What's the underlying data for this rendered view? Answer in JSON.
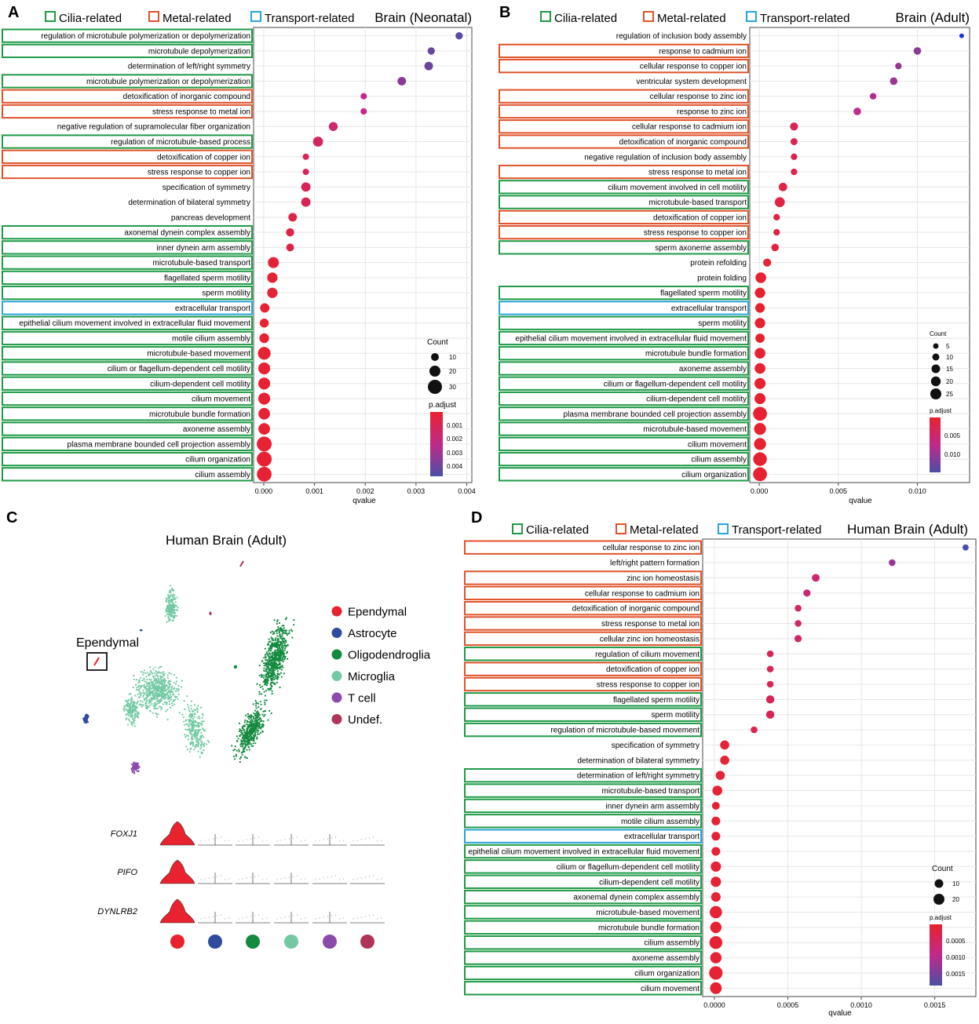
{
  "colors": {
    "cilia": "#1e9a46",
    "metal": "#e0522a",
    "transport": "#27a4d8",
    "grid": "#e6e6e6",
    "red": "#e8222f",
    "purple": "#a042b5",
    "blue": "#3a4ca3",
    "bright_blue": "#1f2ee8"
  },
  "header_legend": {
    "cilia": "Cilia-related",
    "metal": "Metal-related",
    "transport": "Transport-related"
  },
  "chart_data": [
    {
      "panel": "A",
      "type": "scatter",
      "title": "Brain (Neonatal)",
      "xlabel": "qvalue",
      "xlim": [
        -0.0002,
        0.0041
      ],
      "xticks": [
        0,
        0.001,
        0.002,
        0.003,
        0.004
      ],
      "xtick_labels": [
        "0.000",
        "0.001",
        "0.002",
        "0.003",
        "0.004"
      ],
      "size_legend": {
        "title": "Count",
        "values": [
          10,
          20,
          30
        ]
      },
      "color_legend": {
        "title": "p.adjust",
        "labels": [
          "0.001",
          "0.002",
          "0.003",
          "0.004"
        ]
      },
      "terms": [
        {
          "label": "regulation of microtubule polymerization or depolymerization",
          "group": "cilia",
          "qvalue": 0.00385,
          "count": 8,
          "padj": 0.0045
        },
        {
          "label": "microtubule depolymerization",
          "group": "cilia",
          "qvalue": 0.0033,
          "count": 8,
          "padj": 0.0042
        },
        {
          "label": "determination of left/right symmetry",
          "group": "none",
          "qvalue": 0.00325,
          "count": 11,
          "padj": 0.0041
        },
        {
          "label": "microtubule polymerization or depolymerization",
          "group": "cilia",
          "qvalue": 0.00272,
          "count": 11,
          "padj": 0.0035
        },
        {
          "label": "detoxification of inorganic compound",
          "group": "metal",
          "qvalue": 0.00197,
          "count": 6,
          "padj": 0.0024
        },
        {
          "label": "stress response to metal ion",
          "group": "metal",
          "qvalue": 0.00197,
          "count": 6,
          "padj": 0.0024
        },
        {
          "label": "negative regulation of supramolecular fiber organization",
          "group": "none",
          "qvalue": 0.00137,
          "count": 12,
          "padj": 0.0017
        },
        {
          "label": "regulation of microtubule-based process",
          "group": "cilia",
          "qvalue": 0.00107,
          "count": 15,
          "padj": 0.0013
        },
        {
          "label": "detoxification of copper ion",
          "group": "metal",
          "qvalue": 0.00083,
          "count": 6,
          "padj": 0.001
        },
        {
          "label": "stress response to copper ion",
          "group": "metal",
          "qvalue": 0.00083,
          "count": 6,
          "padj": 0.001
        },
        {
          "label": "specification of symmetry",
          "group": "none",
          "qvalue": 0.00083,
          "count": 13,
          "padj": 0.001
        },
        {
          "label": "determination of bilateral symmetry",
          "group": "none",
          "qvalue": 0.00083,
          "count": 13,
          "padj": 0.001
        },
        {
          "label": "pancreas development",
          "group": "none",
          "qvalue": 0.00057,
          "count": 11,
          "padj": 0.0007
        },
        {
          "label": "axonemal dynein complex assembly",
          "group": "cilia",
          "qvalue": 0.00052,
          "count": 10,
          "padj": 0.0006
        },
        {
          "label": "inner dynein arm assembly",
          "group": "cilia",
          "qvalue": 0.00052,
          "count": 9,
          "padj": 0.0006
        },
        {
          "label": "microtubule-based transport",
          "group": "cilia",
          "qvalue": 0.00019,
          "count": 18,
          "padj": 0.0003
        },
        {
          "label": "flagellated sperm motility",
          "group": "cilia",
          "qvalue": 0.00017,
          "count": 16,
          "padj": 0.0002
        },
        {
          "label": "sperm motility",
          "group": "cilia",
          "qvalue": 0.00017,
          "count": 16,
          "padj": 0.0002
        },
        {
          "label": "extracellular transport",
          "group": "transport",
          "qvalue": 2e-05,
          "count": 13,
          "padj": 0.0001
        },
        {
          "label": "epithelial cilium movement involved in extracellular fluid movement",
          "group": "cilia",
          "qvalue": 1e-05,
          "count": 12,
          "padj": 0.0001
        },
        {
          "label": "motile cilium assembly",
          "group": "cilia",
          "qvalue": 1e-05,
          "count": 14,
          "padj": 0.0001
        },
        {
          "label": "microtubule-based movement",
          "group": "cilia",
          "qvalue": 1e-05,
          "count": 24,
          "padj": 0.0001
        },
        {
          "label": "cilium or flagellum-dependent cell motility",
          "group": "cilia",
          "qvalue": 1e-05,
          "count": 21,
          "padj": 0.0001
        },
        {
          "label": "cilium-dependent cell motility",
          "group": "cilia",
          "qvalue": 1e-05,
          "count": 21,
          "padj": 0.0001
        },
        {
          "label": "cilium movement",
          "group": "cilia",
          "qvalue": 1e-05,
          "count": 21,
          "padj": 0.0001
        },
        {
          "label": "microtubule bundle formation",
          "group": "cilia",
          "qvalue": 1e-05,
          "count": 20,
          "padj": 0.0001
        },
        {
          "label": "axoneme assembly",
          "group": "cilia",
          "qvalue": 1e-05,
          "count": 20,
          "padj": 0.0001
        },
        {
          "label": "plasma membrane bounded cell projection assembly",
          "group": "cilia",
          "qvalue": 1e-05,
          "count": 33,
          "padj": 0.0001
        },
        {
          "label": "cilium organization",
          "group": "cilia",
          "qvalue": 1e-05,
          "count": 33,
          "padj": 0.0001
        },
        {
          "label": "cilium assembly",
          "group": "cilia",
          "qvalue": 1e-05,
          "count": 32,
          "padj": 0.0001
        }
      ]
    },
    {
      "panel": "B",
      "type": "scatter",
      "title": "Brain (Adult)",
      "xlabel": "qvalue",
      "xlim": [
        -0.0006,
        0.0133
      ],
      "xticks": [
        0,
        0.005,
        0.01
      ],
      "xtick_labels": [
        "0.000",
        "0.005",
        "0.010"
      ],
      "size_legend": {
        "title": "Count",
        "values": [
          5,
          10,
          15,
          20,
          25
        ]
      },
      "color_legend": {
        "title": "p.adjust",
        "labels": [
          "0.005",
          "0.010"
        ]
      },
      "terms": [
        {
          "label": "regulation of inclusion body assembly",
          "group": "none",
          "qvalue": 0.0128,
          "count": 3,
          "padj": 0.0125
        },
        {
          "label": "response to cadmium ion",
          "group": "metal",
          "qvalue": 0.01,
          "count": 8,
          "padj": 0.0095
        },
        {
          "label": "cellular response to copper ion",
          "group": "metal",
          "qvalue": 0.0088,
          "count": 6,
          "padj": 0.0088
        },
        {
          "label": "ventricular system development",
          "group": "none",
          "qvalue": 0.0085,
          "count": 8,
          "padj": 0.0085
        },
        {
          "label": "cellular response to zinc ion",
          "group": "metal",
          "qvalue": 0.0072,
          "count": 6,
          "padj": 0.0075
        },
        {
          "label": "response to zinc ion",
          "group": "metal",
          "qvalue": 0.0062,
          "count": 8,
          "padj": 0.0065
        },
        {
          "label": "cellular response to cadmium ion",
          "group": "metal",
          "qvalue": 0.0022,
          "count": 9,
          "padj": 0.0025
        },
        {
          "label": "detoxification of inorganic compound",
          "group": "metal",
          "qvalue": 0.0022,
          "count": 7,
          "padj": 0.0025
        },
        {
          "label": "negative regulation of inclusion body assembly",
          "group": "none",
          "qvalue": 0.0022,
          "count": 6,
          "padj": 0.0025
        },
        {
          "label": "stress response to metal ion",
          "group": "metal",
          "qvalue": 0.0022,
          "count": 6,
          "padj": 0.0025
        },
        {
          "label": "cilium movement involved in cell motility",
          "group": "cilia",
          "qvalue": 0.0015,
          "count": 10,
          "padj": 0.0017
        },
        {
          "label": "microtubule-based transport",
          "group": "cilia",
          "qvalue": 0.0013,
          "count": 14,
          "padj": 0.0015
        },
        {
          "label": "detoxification of copper ion",
          "group": "metal",
          "qvalue": 0.0011,
          "count": 6,
          "padj": 0.0012
        },
        {
          "label": "stress response to copper ion",
          "group": "metal",
          "qvalue": 0.0011,
          "count": 6,
          "padj": 0.0012
        },
        {
          "label": "sperm axoneme assembly",
          "group": "cilia",
          "qvalue": 0.001,
          "count": 8,
          "padj": 0.0011
        },
        {
          "label": "protein refolding",
          "group": "none",
          "qvalue": 0.0005,
          "count": 9,
          "padj": 0.0006
        },
        {
          "label": "protein folding",
          "group": "none",
          "qvalue": 0.0001,
          "count": 16,
          "padj": 0.0002
        },
        {
          "label": "flagellated sperm motility",
          "group": "cilia",
          "qvalue": 5e-05,
          "count": 15,
          "padj": 0.0001
        },
        {
          "label": "extracellular transport",
          "group": "transport",
          "qvalue": 5e-05,
          "count": 13,
          "padj": 0.0001
        },
        {
          "label": "sperm motility",
          "group": "cilia",
          "qvalue": 5e-05,
          "count": 15,
          "padj": 0.0001
        },
        {
          "label": "epithelial cilium movement involved in extracellular fluid movement",
          "group": "cilia",
          "qvalue": 5e-05,
          "count": 12,
          "padj": 0.0001
        },
        {
          "label": "microtubule bundle formation",
          "group": "cilia",
          "qvalue": 5e-05,
          "count": 16,
          "padj": 0.0001
        },
        {
          "label": "axoneme assembly",
          "group": "cilia",
          "qvalue": 5e-05,
          "count": 16,
          "padj": 0.0001
        },
        {
          "label": "cilium or flagellum-dependent cell motility",
          "group": "cilia",
          "qvalue": 5e-05,
          "count": 17,
          "padj": 0.0001
        },
        {
          "label": "cilium-dependent cell motility",
          "group": "cilia",
          "qvalue": 5e-05,
          "count": 17,
          "padj": 0.0001
        },
        {
          "label": "plasma membrane bounded cell projection assembly",
          "group": "cilia",
          "qvalue": 5e-05,
          "count": 27,
          "padj": 0.0001
        },
        {
          "label": "microtubule-based movement",
          "group": "cilia",
          "qvalue": 5e-05,
          "count": 20,
          "padj": 0.0001
        },
        {
          "label": "cilium movement",
          "group": "cilia",
          "qvalue": 5e-05,
          "count": 20,
          "padj": 0.0001
        },
        {
          "label": "cilium assembly",
          "group": "cilia",
          "qvalue": 5e-05,
          "count": 26,
          "padj": 0.0001
        },
        {
          "label": "cilium organization",
          "group": "cilia",
          "qvalue": 5e-05,
          "count": 27,
          "padj": 0.0001
        }
      ]
    },
    {
      "panel": "D",
      "type": "scatter",
      "title": "Human Brain (Adult)",
      "xlabel": "qvalue",
      "xlim": [
        -8e-05,
        0.00178
      ],
      "xticks": [
        0,
        0.0005,
        0.001,
        0.0015
      ],
      "xtick_labels": [
        "0.0000",
        "0.0005",
        "0.0010",
        "0.0015"
      ],
      "size_legend": {
        "title": "Count",
        "values": [
          10,
          20
        ]
      },
      "color_legend": {
        "title": "p.adjust",
        "labels": [
          "0.0005",
          "0.0010",
          "0.0015"
        ]
      },
      "terms": [
        {
          "label": "cellular response to zinc ion",
          "group": "metal",
          "qvalue": 0.00171,
          "count": 5,
          "padj": 0.0019
        },
        {
          "label": "left/right pattern formation",
          "group": "none",
          "qvalue": 0.00121,
          "count": 6,
          "padj": 0.0013
        },
        {
          "label": "zinc ion homeostasis",
          "group": "metal",
          "qvalue": 0.00069,
          "count": 8,
          "padj": 0.0007
        },
        {
          "label": "cellular response to cadmium ion",
          "group": "metal",
          "qvalue": 0.00063,
          "count": 7,
          "padj": 0.0007
        },
        {
          "label": "detoxification of inorganic compound",
          "group": "metal",
          "qvalue": 0.00057,
          "count": 6,
          "padj": 0.0006
        },
        {
          "label": "stress response to metal ion",
          "group": "metal",
          "qvalue": 0.00057,
          "count": 6,
          "padj": 0.0006
        },
        {
          "label": "cellular zinc ion homeostasis",
          "group": "metal",
          "qvalue": 0.00057,
          "count": 7,
          "padj": 0.0006
        },
        {
          "label": "regulation of cilium movement",
          "group": "cilia",
          "qvalue": 0.00038,
          "count": 6,
          "padj": 0.0004
        },
        {
          "label": "detoxification of copper ion",
          "group": "metal",
          "qvalue": 0.00038,
          "count": 6,
          "padj": 0.0004
        },
        {
          "label": "stress response to copper ion",
          "group": "metal",
          "qvalue": 0.00038,
          "count": 6,
          "padj": 0.0004
        },
        {
          "label": "flagellated sperm motility",
          "group": "cilia",
          "qvalue": 0.00038,
          "count": 9,
          "padj": 0.0004
        },
        {
          "label": "sperm motility",
          "group": "cilia",
          "qvalue": 0.00038,
          "count": 9,
          "padj": 0.0004
        },
        {
          "label": "regulation of microtubule-based movement",
          "group": "cilia",
          "qvalue": 0.00027,
          "count": 6,
          "padj": 0.0003
        },
        {
          "label": "specification of symmetry",
          "group": "none",
          "qvalue": 7e-05,
          "count": 11,
          "padj": 0.0001
        },
        {
          "label": "determination of bilateral symmetry",
          "group": "none",
          "qvalue": 7e-05,
          "count": 11,
          "padj": 0.0001
        },
        {
          "label": "determination of left/right symmetry",
          "group": "cilia",
          "qvalue": 4e-05,
          "count": 11,
          "padj": 0.0001
        },
        {
          "label": "microtubule-based transport",
          "group": "cilia",
          "qvalue": 2e-05,
          "count": 13,
          "padj": 5e-05
        },
        {
          "label": "inner dynein arm assembly",
          "group": "cilia",
          "qvalue": 1e-05,
          "count": 8,
          "padj": 5e-05
        },
        {
          "label": "motile cilium assembly",
          "group": "cilia",
          "qvalue": 1e-05,
          "count": 10,
          "padj": 5e-05
        },
        {
          "label": "extracellular transport",
          "group": "transport",
          "qvalue": 1e-05,
          "count": 10,
          "padj": 5e-05
        },
        {
          "label": "epithelial cilium movement involved in extracellular fluid movement",
          "group": "cilia",
          "qvalue": 1e-05,
          "count": 10,
          "padj": 5e-05
        },
        {
          "label": "cilium or flagellum-dependent cell motility",
          "group": "cilia",
          "qvalue": 1e-05,
          "count": 14,
          "padj": 5e-05
        },
        {
          "label": "cilium-dependent cell motility",
          "group": "cilia",
          "qvalue": 1e-05,
          "count": 14,
          "padj": 5e-05
        },
        {
          "label": "axonemal dynein complex assembly",
          "group": "cilia",
          "qvalue": 1e-05,
          "count": 12,
          "padj": 5e-05
        },
        {
          "label": "microtubule-based movement",
          "group": "cilia",
          "qvalue": 1e-05,
          "count": 20,
          "padj": 5e-05
        },
        {
          "label": "microtubule bundle formation",
          "group": "cilia",
          "qvalue": 1e-05,
          "count": 17,
          "padj": 5e-05
        },
        {
          "label": "cilium assembly",
          "group": "cilia",
          "qvalue": 1e-05,
          "count": 22,
          "padj": 5e-05
        },
        {
          "label": "axoneme assembly",
          "group": "cilia",
          "qvalue": 1e-05,
          "count": 17,
          "padj": 5e-05
        },
        {
          "label": "cilium organization",
          "group": "cilia",
          "qvalue": 1e-05,
          "count": 24,
          "padj": 5e-05
        },
        {
          "label": "cilium movement",
          "group": "cilia",
          "qvalue": 1e-05,
          "count": 18,
          "padj": 5e-05
        }
      ]
    }
  ],
  "panel_c": {
    "panel": "C",
    "title": "Human Brain (Adult)",
    "callout": "Ependymal",
    "clusters": [
      {
        "name": "Ependymal",
        "color": "#e8222f"
      },
      {
        "name": "Astrocyte",
        "color": "#2f4a9e"
      },
      {
        "name": "Oligodendroglia",
        "color": "#138a3f"
      },
      {
        "name": "Microglia",
        "color": "#74c9a4"
      },
      {
        "name": "T cell",
        "color": "#8a4bab"
      },
      {
        "name": "Undef.",
        "color": "#b03458"
      }
    ],
    "genes": [
      "FOXJ1",
      "PIFO",
      "DYNLRB2"
    ]
  }
}
